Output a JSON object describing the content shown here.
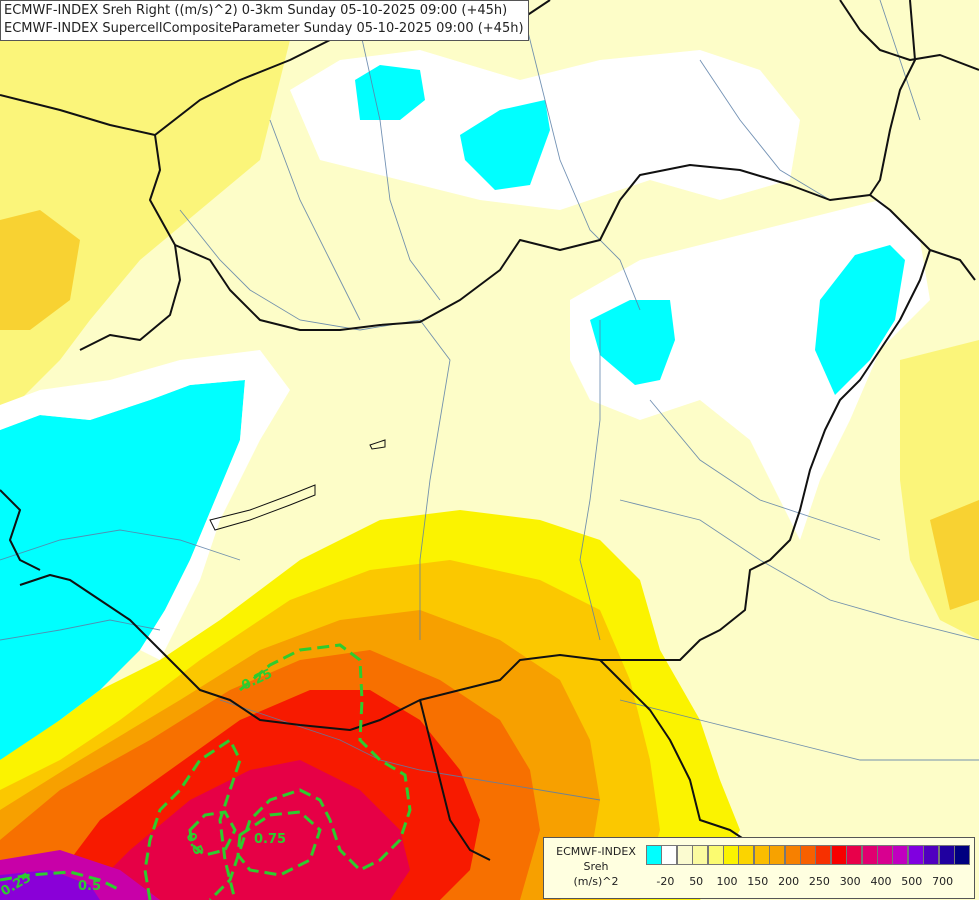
{
  "titles": {
    "line1": "ECMWF-INDEX Sreh Right ((m/s)^2) 0-3km Sunday 05-10-2025 09:00 (+45h)",
    "line2": "ECMWF-INDEX SupercellCompositeParameter Sunday 05-10-2025 09:00 (+45h)"
  },
  "legend": {
    "line1": "ECMWF-INDEX",
    "line2": "Sreh",
    "line3": "(m/s)^2",
    "swatch_colors": [
      "#00ffff",
      "#ffffff",
      "#fbfbd0",
      "#fbfba0",
      "#fbfb70",
      "#fbf300",
      "#fbd400",
      "#fbbd00",
      "#f7a200",
      "#f78000",
      "#f76000",
      "#f73000",
      "#f70000",
      "#e8004a",
      "#e00070",
      "#d80090",
      "#c000c0",
      "#8000e0",
      "#5000c0",
      "#2000a0",
      "#000080"
    ],
    "ticks": [
      "-20",
      "50",
      "100",
      "150",
      "200",
      "250",
      "300",
      "400",
      "500",
      "700"
    ]
  },
  "contour_labels": [
    "0.25",
    "0.5",
    "0.75",
    "0.5",
    "0.25"
  ]
}
